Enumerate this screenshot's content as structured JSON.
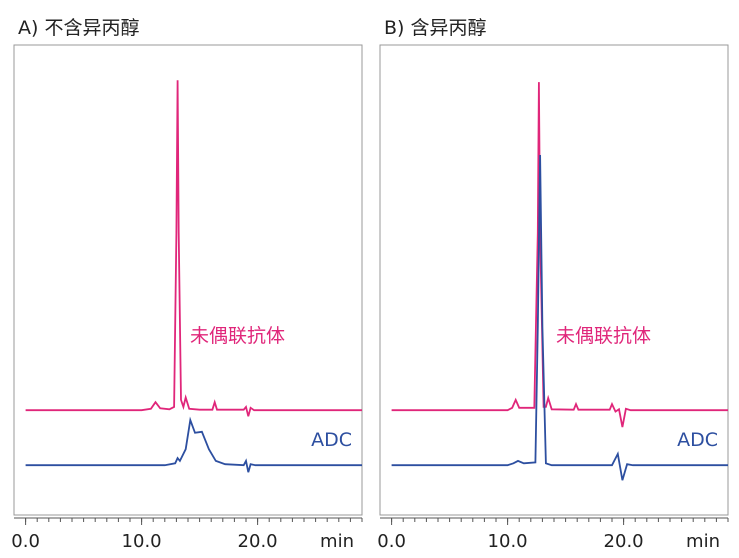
{
  "chart_data": [
    {
      "type": "line",
      "title": "A) 不含异丙醇",
      "x_label": "min",
      "xlim": [
        -1,
        29
      ],
      "ylim": [
        0,
        100
      ],
      "xticks": [
        {
          "value": 0,
          "label": "0.0"
        },
        {
          "value": 10,
          "label": "10.0"
        },
        {
          "value": 20,
          "label": "20.0"
        }
      ],
      "xminorticks": [
        0,
        1,
        2,
        3,
        4,
        5,
        6,
        7,
        8,
        9,
        10,
        11,
        12,
        13,
        14,
        15,
        16,
        17,
        18,
        19,
        20,
        21,
        22,
        23,
        24,
        25,
        26,
        27,
        28,
        29
      ],
      "series": [
        {
          "name": "未偶联抗体",
          "color": "#e0267a",
          "x": [
            0,
            10,
            10.8,
            11.2,
            11.6,
            12.4,
            12.8,
            13.0,
            13.1,
            13.2,
            13.4,
            13.6,
            13.8,
            14.1,
            15,
            16.1,
            16.3,
            16.5,
            18.8,
            19.0,
            19.2,
            19.4,
            19.7,
            29
          ],
          "values": [
            22.3,
            22.3,
            22.6,
            24,
            22.7,
            22.5,
            23,
            60,
            92.5,
            60,
            24.5,
            23,
            25,
            22.6,
            22.4,
            22.4,
            24,
            22.4,
            22.4,
            23,
            21,
            22.8,
            22.3,
            22.3
          ]
        },
        {
          "name": "ADC",
          "color": "#2d4fa0",
          "x": [
            0,
            12,
            12.9,
            13.1,
            13.3,
            13.8,
            14.2,
            14.6,
            15.2,
            15.8,
            16.4,
            17.2,
            18.8,
            19.0,
            19.2,
            19.4,
            19.8,
            29
          ],
          "values": [
            10.6,
            10.6,
            11,
            12.1,
            11.5,
            14,
            20.2,
            17.5,
            17.7,
            14,
            11.5,
            10.8,
            10.6,
            11.5,
            9.1,
            10.8,
            10.6,
            10.6
          ]
        }
      ]
    },
    {
      "type": "line",
      "title": "B) 含异丙醇",
      "x_label": "min",
      "xlim": [
        -1,
        29
      ],
      "ylim": [
        0,
        100
      ],
      "xticks": [
        {
          "value": 0,
          "label": "0.0"
        },
        {
          "value": 10,
          "label": "10.0"
        },
        {
          "value": 20,
          "label": "20.0"
        }
      ],
      "xminorticks": [
        0,
        1,
        2,
        3,
        4,
        5,
        6,
        7,
        8,
        9,
        10,
        11,
        12,
        13,
        14,
        15,
        16,
        17,
        18,
        19,
        20,
        21,
        22,
        23,
        24,
        25,
        26,
        27,
        28,
        29
      ],
      "series": [
        {
          "name": "未偶联抗体",
          "color": "#e0267a",
          "x": [
            0,
            10,
            10.4,
            10.7,
            11,
            12.3,
            12.6,
            12.7,
            12.8,
            13.1,
            13.3,
            13.5,
            13.8,
            15.7,
            15.9,
            16.1,
            18.8,
            19.0,
            19.3,
            19.6,
            19.9,
            20.2,
            20.6,
            29
          ],
          "values": [
            22.3,
            22.3,
            22.8,
            24.5,
            22.8,
            22.8,
            60,
            92.1,
            60,
            23,
            23,
            24.9,
            22.5,
            22.4,
            23.6,
            22.4,
            22.4,
            23.6,
            22,
            22.5,
            18.7,
            22.6,
            22.3,
            22.3
          ]
        },
        {
          "name": "ADC",
          "color": "#2d4fa0",
          "x": [
            0,
            10,
            10.5,
            10.9,
            11.4,
            12.4,
            12.6,
            12.8,
            13.0,
            13.3,
            13.8,
            19.0,
            19.5,
            19.9,
            20.3,
            20.8,
            29
          ],
          "values": [
            10.6,
            10.6,
            11,
            11.5,
            11,
            11.2,
            40,
            76.6,
            40,
            11,
            10.6,
            10.6,
            13,
            7.4,
            10.8,
            10.6,
            10.6
          ]
        }
      ]
    }
  ]
}
